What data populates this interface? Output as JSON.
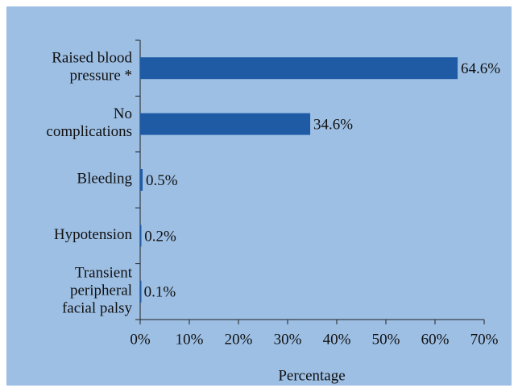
{
  "chart_data": {
    "type": "bar",
    "orientation": "horizontal",
    "categories": [
      "Raised blood\npressure *",
      "No\ncomplications",
      "Bleeding",
      "Hypotension",
      "Transient\nperipheral\nfacial palsy"
    ],
    "values": [
      64.6,
      34.6,
      0.5,
      0.2,
      0.1
    ],
    "value_labels": [
      "64.6%",
      "34.6%",
      "0.5%",
      "0.2%",
      "0.1%"
    ],
    "color": "#1f5ba5",
    "xlabel": "Percentage",
    "xlim": [
      0,
      70
    ],
    "xticks": [
      {
        "value": 0,
        "label": "0%"
      },
      {
        "value": 10,
        "label": "10%"
      },
      {
        "value": 20,
        "label": "20%"
      },
      {
        "value": 30,
        "label": "30%"
      },
      {
        "value": 40,
        "label": "40%"
      },
      {
        "value": 50,
        "label": "50%"
      },
      {
        "value": 60,
        "label": "60%"
      },
      {
        "value": 70,
        "label": "70%"
      }
    ]
  }
}
